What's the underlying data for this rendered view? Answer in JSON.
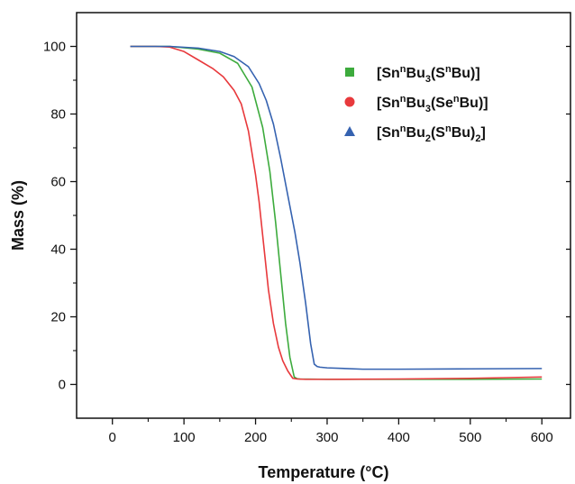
{
  "chart_data": {
    "type": "line",
    "xlabel": "Temperature (°C)",
    "ylabel": "Mass (%)",
    "xlim": [
      -50,
      640
    ],
    "ylim": [
      -10,
      110
    ],
    "xticks": [
      0,
      100,
      200,
      300,
      400,
      500,
      600
    ],
    "yticks": [
      0,
      20,
      40,
      60,
      80,
      100
    ],
    "grid": false,
    "legend_position": "top-right",
    "series": [
      {
        "name": "[SnnBu3(SnBu)]",
        "legend_parts": [
          {
            "t": "[Sn",
            "s": "n"
          },
          {
            "t": "n",
            "s": "sup"
          },
          {
            "t": "Bu",
            "s": "n"
          },
          {
            "t": "3",
            "s": "sub"
          },
          {
            "t": "(S",
            "s": "n"
          },
          {
            "t": "n",
            "s": "sup"
          },
          {
            "t": "Bu)]",
            "s": "n"
          }
        ],
        "color": "#3dab3d",
        "marker": "square",
        "x": [
          25,
          80,
          120,
          150,
          175,
          195,
          210,
          220,
          228,
          235,
          242,
          248,
          254,
          258,
          262,
          300,
          400,
          500,
          600
        ],
        "y": [
          100,
          100,
          99.2,
          98,
          95,
          88,
          76,
          63,
          48,
          33,
          18,
          8,
          2.2,
          1.7,
          1.6,
          1.5,
          1.5,
          1.5,
          1.6
        ]
      },
      {
        "name": "[SnnBu3(SenBu)]",
        "legend_parts": [
          {
            "t": "[Sn",
            "s": "n"
          },
          {
            "t": "n",
            "s": "sup"
          },
          {
            "t": "Bu",
            "s": "n"
          },
          {
            "t": "3",
            "s": "sub"
          },
          {
            "t": "(Se",
            "s": "n"
          },
          {
            "t": "n",
            "s": "sup"
          },
          {
            "t": "Bu)]",
            "s": "n"
          }
        ],
        "color": "#e8393c",
        "marker": "circle",
        "x": [
          25,
          60,
          80,
          100,
          120,
          140,
          155,
          170,
          180,
          190,
          200,
          205,
          212,
          218,
          225,
          232,
          238,
          245,
          252,
          258,
          270,
          300,
          400,
          500,
          600
        ],
        "y": [
          100,
          100,
          99.8,
          98.5,
          96,
          93.5,
          91,
          87,
          83,
          75,
          62,
          54,
          40,
          28,
          18,
          11,
          7,
          4,
          1.8,
          1.6,
          1.5,
          1.5,
          1.6,
          1.8,
          2.2
        ]
      },
      {
        "name": "[SnnBu2(SnBu)2]",
        "legend_parts": [
          {
            "t": "[Sn",
            "s": "n"
          },
          {
            "t": "n",
            "s": "sup"
          },
          {
            "t": "Bu",
            "s": "n"
          },
          {
            "t": "2",
            "s": "sub"
          },
          {
            "t": "(S",
            "s": "n"
          },
          {
            "t": "n",
            "s": "sup"
          },
          {
            "t": "Bu)",
            "s": "n"
          },
          {
            "t": "2",
            "s": "sub"
          },
          {
            "t": "]",
            "s": "n"
          }
        ],
        "color": "#3562b0",
        "marker": "triangle",
        "x": [
          25,
          80,
          120,
          150,
          170,
          190,
          205,
          215,
          225,
          235,
          245,
          255,
          262,
          270,
          277,
          282,
          286,
          290,
          300,
          350,
          400,
          500,
          600
        ],
        "y": [
          100,
          100,
          99.5,
          98.5,
          97,
          94,
          89,
          84,
          77,
          67,
          56,
          45,
          36,
          24,
          12,
          6,
          5.3,
          5.1,
          4.9,
          4.5,
          4.5,
          4.6,
          4.7
        ]
      }
    ]
  }
}
